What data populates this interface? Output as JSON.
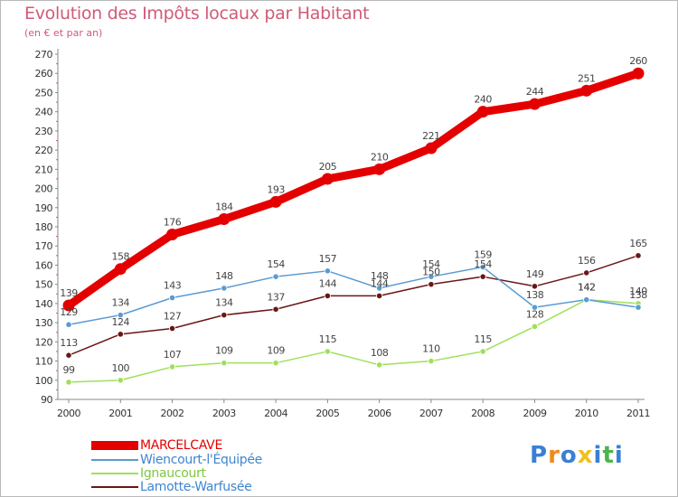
{
  "chart_data": {
    "type": "line",
    "title": "Evolution des Impôts locaux par Habitant",
    "subtitle": "(en € et par an)",
    "xlabel": "",
    "ylabel": "",
    "categories": [
      "2000",
      "2001",
      "2002",
      "2003",
      "2004",
      "2005",
      "2006",
      "2007",
      "2008",
      "2009",
      "2010",
      "2011"
    ],
    "ylim": [
      90,
      270
    ],
    "yticks": [
      90,
      100,
      110,
      120,
      130,
      140,
      150,
      160,
      170,
      180,
      190,
      200,
      210,
      220,
      230,
      240,
      250,
      260,
      270
    ],
    "grid": false,
    "legend": "bottom-left",
    "series": [
      {
        "name": "MARCELCAVE",
        "color": "#e50000",
        "values": [
          139,
          158,
          176,
          184,
          193,
          205,
          210,
          221,
          240,
          244,
          251,
          260
        ]
      },
      {
        "name": "Wiencourt-l'Équipée",
        "color": "#5a9bd3",
        "values": [
          129,
          134,
          143,
          148,
          154,
          157,
          148,
          154,
          159,
          138,
          142,
          138
        ]
      },
      {
        "name": "Ignaucourt",
        "color": "#9fe05a",
        "values": [
          99,
          100,
          107,
          109,
          109,
          115,
          108,
          110,
          115,
          128,
          142,
          140
        ]
      },
      {
        "name": "Lamotte-Warfusée",
        "color": "#6b1616",
        "values": [
          113,
          124,
          127,
          134,
          137,
          144,
          144,
          150,
          154,
          149,
          156,
          165
        ]
      }
    ]
  },
  "brand": {
    "letters": [
      "P",
      "r",
      "o",
      "x",
      "i",
      "t",
      "i"
    ],
    "colors": [
      "#3a7fd5",
      "#f08a1a",
      "#3a7fd5",
      "#f0c020",
      "#3a7fd5",
      "#4db34d",
      "#3a7fd5"
    ]
  }
}
